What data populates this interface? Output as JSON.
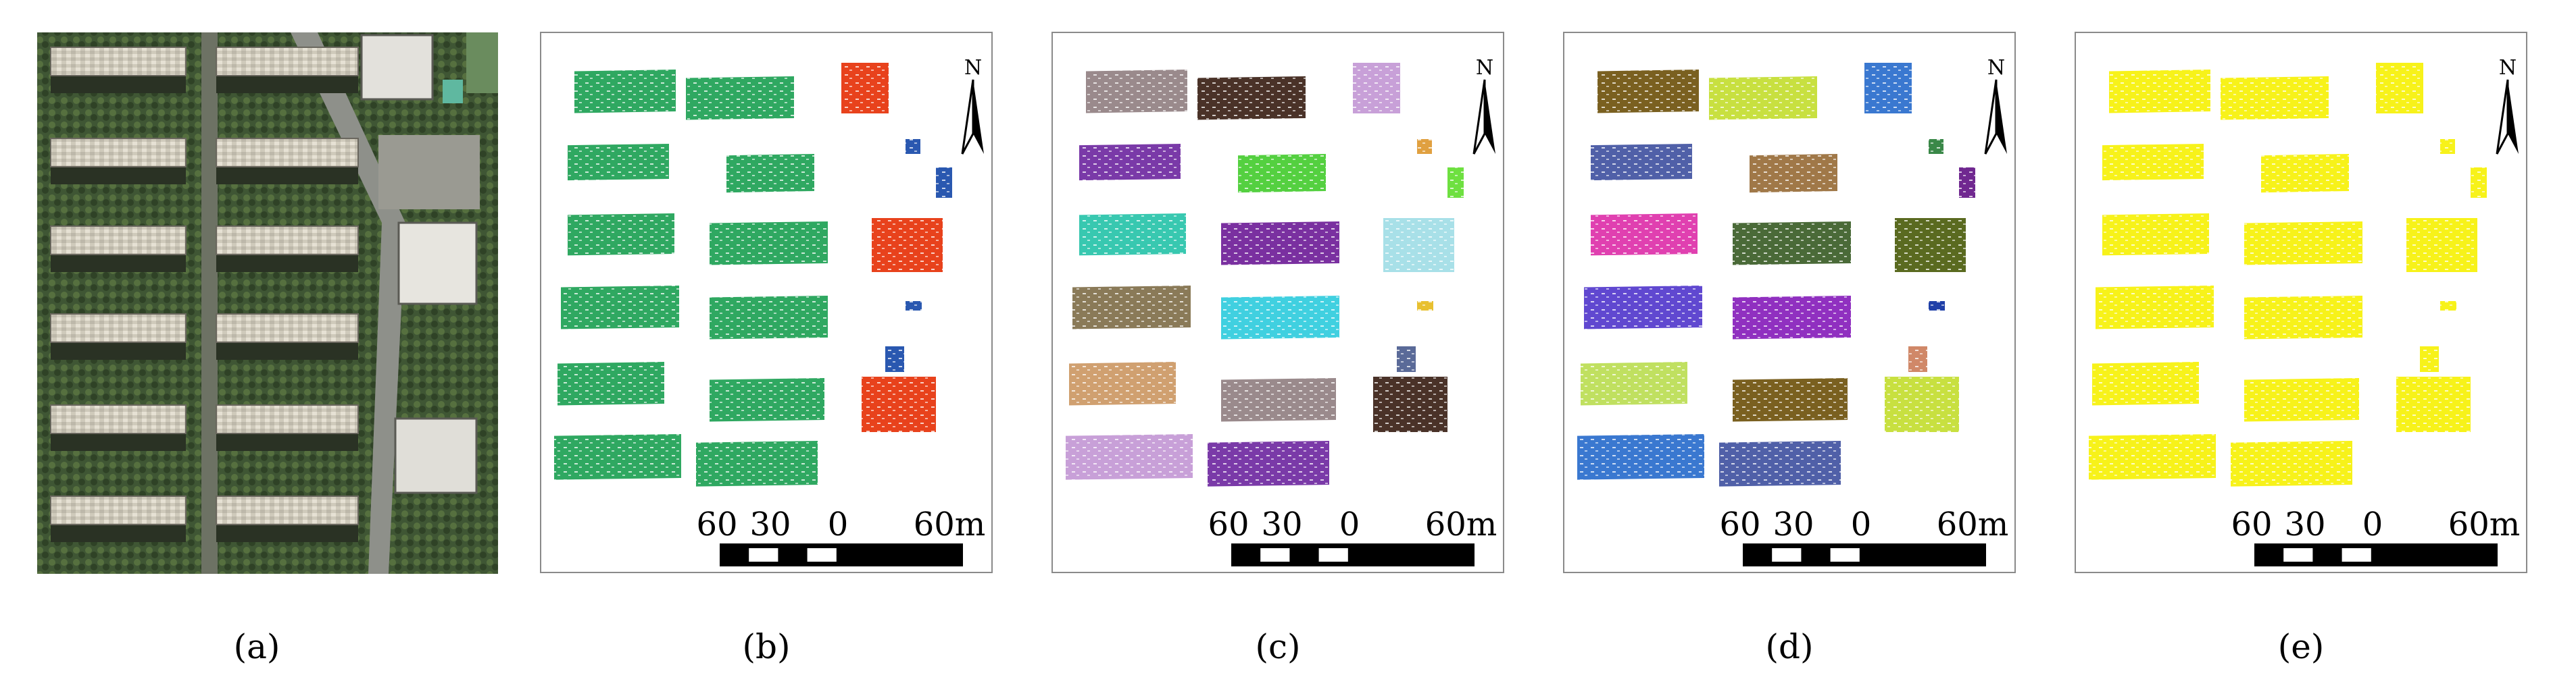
{
  "panels": [
    {
      "id": "a",
      "caption": "(a)"
    },
    {
      "id": "b",
      "caption": "(b)",
      "colors": [
        "#2fa861"
      ]
    },
    {
      "id": "c",
      "caption": "(c)",
      "colors": [
        "#9a8a8c",
        "#4a3228",
        "#c8a0d8",
        "#7a3aa8",
        "#54d040",
        "#e0a040",
        "#6ee040",
        "#38c8b0",
        "#7a30a0",
        "#a8e0e8",
        "#8a7a58",
        "#40d0e0",
        "#e8c030",
        "#5a6a98",
        "#d0a070"
      ]
    },
    {
      "id": "d",
      "caption": "(d)",
      "colors": [
        "#7a6020",
        "#c8e040",
        "#3a78d0",
        "#5060a8",
        "#a07848",
        "#3a8848",
        "#702890",
        "#e040b0",
        "#4a6a38",
        "#5a6a20",
        "#6048d0",
        "#9030c0",
        "#2040a8",
        "#d08868",
        "#c0e060"
      ]
    },
    {
      "id": "e",
      "caption": "(e)",
      "colors": [
        "#f7f21a"
      ]
    }
  ],
  "north_label": "N",
  "scale_labels": [
    "60",
    "30",
    "0",
    "60m"
  ],
  "palette": {
    "roof": "#d9d4c6",
    "shadow": "#28301e",
    "tree": "#46603a",
    "road": "#8a8c88",
    "red": "#e83a14",
    "blue": "#2a58b0"
  }
}
